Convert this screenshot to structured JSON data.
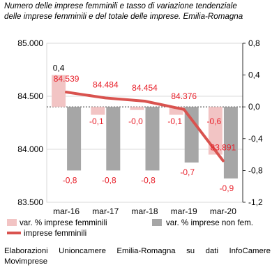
{
  "header": {
    "title": "Numero delle imprese femminili e tasso di variazione tendenziale\ndelle imprese femminili e del totale delle imprese. Emilia-Romagna"
  },
  "footer": {
    "source": "Elaborazioni Unioncamere Emilia-Romagna su dati InfoCamere Movimprese"
  },
  "colors": {
    "text_red": "#e8202a",
    "bar_pink": "#f2c4c4",
    "bar_grey": "#a6a6a6",
    "line_red": "#d9534f",
    "axis_black": "#000000"
  },
  "chart_data": {
    "type": "bar+line",
    "categories": [
      "mar-16",
      "mar-17",
      "mar-18",
      "mar-19",
      "mar-20"
    ],
    "y_left": {
      "range": [
        83500,
        85000
      ],
      "ticks": [
        "83.500",
        "84.000",
        "84.500",
        "85.000"
      ],
      "tick_values": [
        83500,
        84000,
        84500,
        85000
      ]
    },
    "y_right": {
      "range": [
        -1.2,
        0.8
      ],
      "ticks": [
        "-1,2",
        "-0,8",
        "-0,4",
        "0,0",
        "0,4",
        "0,8"
      ],
      "tick_values": [
        -1.2,
        -0.8,
        -0.4,
        0.0,
        0.4,
        0.8
      ]
    },
    "series": [
      {
        "name": "var. % imprese femminili",
        "type": "bar",
        "axis": "right",
        "values": [
          0.4,
          -0.1,
          -0.04,
          -0.1,
          -0.6
        ],
        "labels": [
          "0,4",
          "-0,1",
          "-0,0",
          "-0,1",
          "-0,6"
        ]
      },
      {
        "name": "var. % imprese non fem.",
        "type": "bar",
        "axis": "right",
        "values": [
          -0.8,
          -0.8,
          -0.8,
          -0.7,
          -0.9
        ],
        "labels": [
          "-0,8",
          "-0,8",
          "-0,8",
          "-0,7",
          "-0,9"
        ]
      },
      {
        "name": "imprese femminili",
        "type": "line",
        "axis": "left",
        "values": [
          84539,
          84484,
          84454,
          84376,
          83891
        ],
        "labels": [
          "84.539",
          "84.484",
          "84.454",
          "84.376",
          "83.891"
        ]
      }
    ],
    "grid": true,
    "legend_position": "bottom"
  }
}
